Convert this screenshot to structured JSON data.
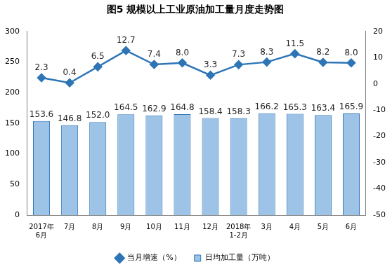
{
  "chart_data": {
    "type": "bar",
    "title": "图5 规模以上工业原油加工量月度走势图",
    "categories": [
      "2017年6月",
      "7月",
      "8月",
      "9月",
      "10月",
      "11月",
      "12月",
      "2018年1-2月",
      "3月",
      "4月",
      "5月",
      "6月"
    ],
    "series": [
      {
        "name": "日均加工量（万吨）",
        "type": "bar",
        "color": "#9dc3e6",
        "values": [
          153.6,
          146.8,
          152.0,
          164.5,
          162.9,
          164.8,
          158.4,
          158.3,
          166.2,
          165.3,
          163.4,
          165.9
        ],
        "value_labels": [
          "153.6",
          "146.8",
          "152.0",
          "164.5",
          "162.9",
          "164.8",
          "158.4",
          "158.3",
          "166.2",
          "165.3",
          "163.4",
          "165.9"
        ]
      },
      {
        "name": "当月增速（%）",
        "type": "line",
        "color": "#2e75b6",
        "axis": "y2",
        "marker": "diamond",
        "line_style": "solid",
        "values": [
          2.3,
          0.4,
          6.5,
          12.7,
          7.4,
          8.0,
          3.3,
          7.3,
          8.3,
          11.5,
          8.2,
          8.0
        ],
        "value_labels": [
          "2.3",
          "0.4",
          "6.5",
          "12.7",
          "7.4",
          "8.0",
          "3.3",
          "7.3",
          "8.3",
          "11.5",
          "8.2",
          "8.0"
        ]
      }
    ],
    "ylim": [
      0,
      300
    ],
    "yticks": [
      0,
      50,
      100,
      150,
      200,
      250,
      300
    ],
    "y2lim": [
      -50,
      20
    ],
    "y2ticks": [
      -50,
      -40,
      -30,
      -20,
      -10,
      0,
      10,
      20
    ],
    "grid": false,
    "legend": "bottom",
    "data_labels": true
  }
}
